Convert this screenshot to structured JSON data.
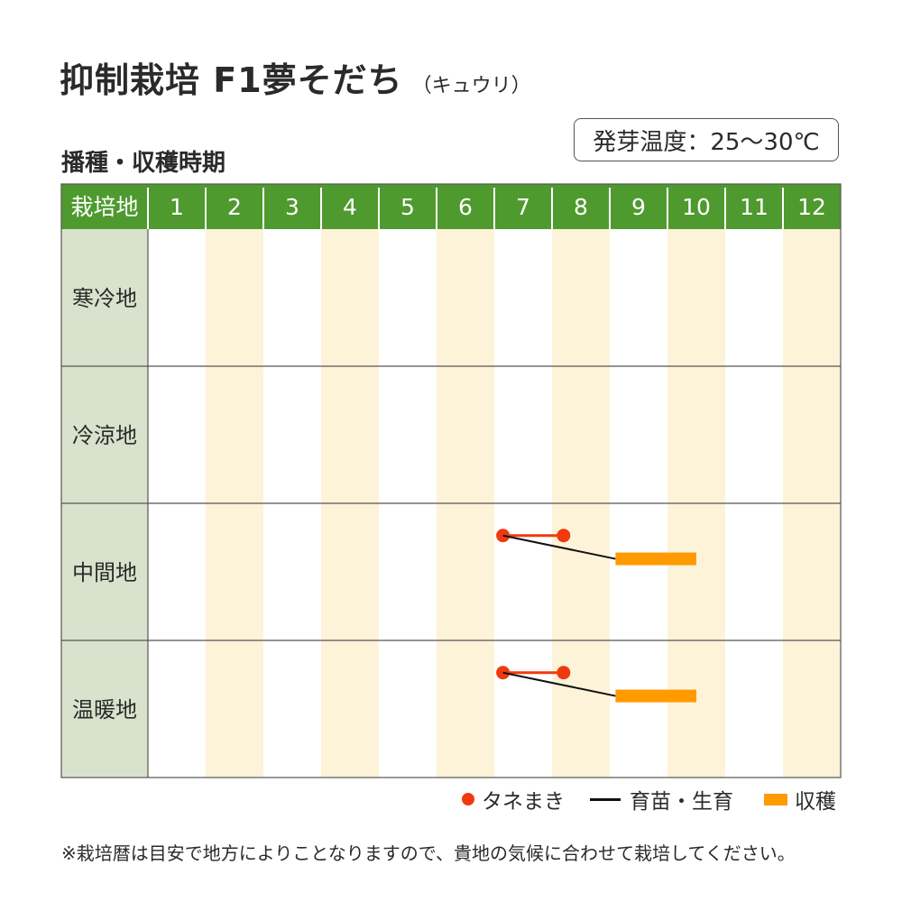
{
  "title": "抑制栽培 F1夢そだち",
  "title_suffix": "（キュウリ）",
  "subtitle": "播種・収穫時期",
  "germination_temp": "発芽温度：25～30℃",
  "colors": {
    "header_green": "#4e9a2e",
    "row_header_bg": "#d9e2cc",
    "alt_column_bg": "#fdf3d8",
    "grid_line": "#555555",
    "sowing": "#f03a0e",
    "growing": "#111111",
    "harvest": "#ff9a00"
  },
  "legend": {
    "sowing": "タネまき",
    "growing": "育苗・生育",
    "harvest": "収穫"
  },
  "note": "※栽培暦は目安で地方によりことなりますので、貴地の気候に合わせて栽培してください。",
  "chart_data": {
    "type": "table",
    "corner_label": "栽培地",
    "columns": [
      "1",
      "2",
      "3",
      "4",
      "5",
      "6",
      "7",
      "8",
      "9",
      "10",
      "11",
      "12"
    ],
    "rows": [
      {
        "label": "寒冷地",
        "sowing": null,
        "growing": null,
        "harvest": null
      },
      {
        "label": "冷涼地",
        "sowing": null,
        "growing": null,
        "harvest": null
      },
      {
        "label": "中間地",
        "sowing": [
          7.15,
          8.2
        ],
        "growing": [
          8.2,
          9.1
        ],
        "harvest": [
          9.1,
          10.5
        ]
      },
      {
        "label": "温暖地",
        "sowing": [
          7.15,
          8.2
        ],
        "growing": [
          8.2,
          9.1
        ],
        "harvest": [
          9.1,
          10.5
        ]
      }
    ]
  }
}
